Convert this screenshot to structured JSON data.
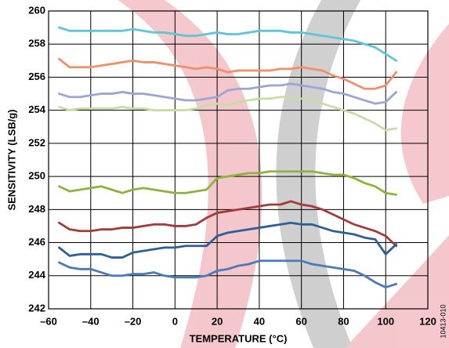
{
  "chart_data": {
    "type": "line",
    "xlabel": "TEMPERATURE (°C)",
    "ylabel": "SENSITIVITY (LSB/g)",
    "note": "10413-010",
    "x": [
      -55,
      -50,
      -45,
      -40,
      -35,
      -30,
      -25,
      -20,
      -15,
      -10,
      -5,
      0,
      5,
      10,
      15,
      20,
      25,
      30,
      35,
      40,
      45,
      50,
      55,
      60,
      65,
      70,
      75,
      80,
      85,
      90,
      95,
      100,
      105
    ],
    "series": [
      {
        "color": "#5fc6d6",
        "values": [
          259.0,
          258.8,
          258.8,
          258.8,
          258.8,
          258.8,
          258.8,
          258.9,
          258.8,
          258.7,
          258.7,
          258.6,
          258.5,
          258.5,
          258.6,
          258.7,
          258.6,
          258.6,
          258.7,
          258.8,
          258.8,
          258.8,
          258.7,
          258.7,
          258.6,
          258.5,
          258.4,
          258.3,
          258.2,
          258.0,
          257.8,
          257.4,
          257.0
        ]
      },
      {
        "color": "#f0906a",
        "values": [
          257.1,
          256.6,
          256.6,
          256.6,
          256.7,
          256.8,
          256.9,
          257.0,
          256.9,
          256.9,
          256.8,
          256.7,
          256.6,
          256.5,
          256.6,
          256.5,
          256.3,
          256.4,
          256.4,
          256.4,
          256.4,
          256.5,
          256.5,
          256.6,
          256.5,
          256.4,
          256.1,
          255.9,
          255.6,
          255.3,
          255.3,
          255.5,
          256.3
        ]
      },
      {
        "color": "#9ba6d4",
        "values": [
          255.0,
          254.8,
          254.8,
          254.9,
          255.0,
          255.0,
          255.1,
          255.0,
          255.0,
          254.9,
          254.8,
          254.7,
          254.6,
          254.6,
          254.7,
          254.8,
          255.2,
          255.3,
          255.3,
          255.4,
          255.5,
          255.5,
          255.6,
          255.5,
          255.4,
          255.3,
          255.1,
          255.0,
          254.8,
          254.6,
          254.4,
          254.5,
          255.1
        ]
      },
      {
        "color": "#c8dca8",
        "values": [
          254.2,
          254.0,
          254.1,
          254.1,
          254.1,
          254.1,
          254.2,
          254.1,
          254.1,
          254.0,
          254.0,
          254.0,
          254.0,
          254.1,
          254.3,
          254.4,
          254.3,
          254.5,
          254.6,
          254.7,
          254.7,
          254.8,
          254.8,
          254.7,
          254.6,
          254.4,
          254.2,
          254.0,
          253.8,
          253.5,
          253.2,
          252.8,
          252.9
        ]
      },
      {
        "color": "#8db33c",
        "values": [
          249.4,
          249.1,
          249.2,
          249.3,
          249.4,
          249.2,
          249.0,
          249.2,
          249.3,
          249.2,
          249.1,
          249.0,
          249.0,
          249.1,
          249.2,
          249.9,
          250.0,
          250.1,
          250.2,
          250.2,
          250.3,
          250.3,
          250.3,
          250.3,
          250.3,
          250.2,
          250.1,
          250.1,
          249.9,
          249.6,
          249.4,
          249.0,
          248.9
        ]
      },
      {
        "color": "#a43a3a",
        "values": [
          247.2,
          246.8,
          246.7,
          246.7,
          246.8,
          246.8,
          246.9,
          246.9,
          247.0,
          247.1,
          247.1,
          247.0,
          247.0,
          247.1,
          247.5,
          247.8,
          247.9,
          248.0,
          248.1,
          248.2,
          248.3,
          248.3,
          248.5,
          248.3,
          248.2,
          248.0,
          247.7,
          247.4,
          247.1,
          246.9,
          246.7,
          246.4,
          245.8
        ]
      },
      {
        "color": "#2f5f98",
        "values": [
          245.7,
          245.2,
          245.3,
          245.3,
          245.3,
          245.1,
          245.1,
          245.4,
          245.5,
          245.6,
          245.7,
          245.7,
          245.8,
          245.8,
          245.8,
          246.4,
          246.6,
          246.7,
          246.8,
          246.9,
          247.0,
          247.1,
          247.2,
          247.1,
          247.1,
          246.9,
          246.7,
          246.6,
          246.5,
          246.3,
          246.2,
          245.3,
          245.9
        ]
      },
      {
        "color": "#4a7ab8",
        "values": [
          244.8,
          244.5,
          244.4,
          244.4,
          244.2,
          244.0,
          244.0,
          244.1,
          244.1,
          244.2,
          244.0,
          243.9,
          243.9,
          243.9,
          244.0,
          244.3,
          244.4,
          244.6,
          244.7,
          244.9,
          244.9,
          244.9,
          244.9,
          244.9,
          244.7,
          244.6,
          244.5,
          244.4,
          244.3,
          244.0,
          243.6,
          243.3,
          243.5
        ]
      }
    ],
    "xlim": [
      -60,
      120
    ],
    "xticks": [
      {
        "value": -60,
        "label": "–60"
      },
      {
        "value": -40,
        "label": "–40"
      },
      {
        "value": -20,
        "label": "–20"
      },
      0,
      20,
      40,
      60,
      80,
      100,
      120
    ],
    "ylim": [
      242,
      260
    ],
    "yticks": [
      242,
      244,
      246,
      248,
      250,
      252,
      254,
      256,
      258,
      260
    ],
    "grid": true
  }
}
